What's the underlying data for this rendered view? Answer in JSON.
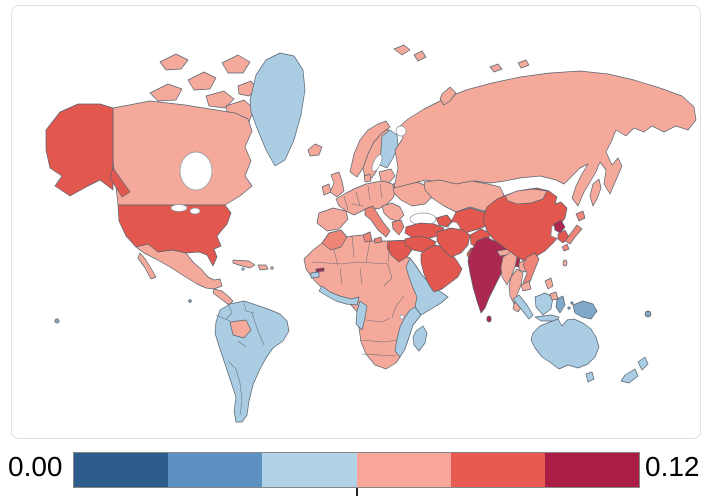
{
  "colorbar": {
    "min_label": "0.00",
    "max_label": "0.12",
    "segment_colors": [
      "#2c5d8c",
      "#5d91c3",
      "#b0d3e7",
      "#f9a69a",
      "#e65a50",
      "#aa1d44"
    ],
    "midpoint_tick": true
  },
  "map": {
    "border_color": "#56636f",
    "sea_stroke": "#8795a1",
    "frame_color": "#e2e2e2",
    "palette": {
      "blue": "#aacde4",
      "mid_blue": "#7fa8c9",
      "pink": "#f5a99b",
      "salmon": "#ee8577",
      "red": "#e2584e",
      "dark_red": "#ad2850",
      "island_dot": "#87a3bc",
      "sea": "#ffffff"
    },
    "regions": {
      "greenland": "blue",
      "finland": "blue",
      "south-america": "blue",
      "panama-costa-rica": "blue",
      "jamaica": "blue",
      "horn-of-africa": "blue",
      "east-africa-coast": "blue",
      "madagascar": "blue",
      "west-africa-coast": "blue",
      "guinea-bissau": "blue",
      "gabon-congo": "blue",
      "sumatra": "blue",
      "java": "blue",
      "borneo": "blue",
      "australia": "blue",
      "tasmania": "blue",
      "new-zealand-north": "blue",
      "new-zealand-south": "blue",
      "sulawesi": "mid_blue",
      "new-guinea": "mid_blue",
      "moluccas-1": "mid_blue",
      "moluccas-2": "mid_blue",
      "canada": "pink",
      "arctic-island-1": "pink",
      "arctic-island-2": "pink",
      "arctic-island-3": "pink",
      "arctic-island-4": "pink",
      "arctic-island-5": "pink",
      "arctic-island-6": "pink",
      "arctic-island-7": "pink",
      "mexico": "pink",
      "baja-california": "pink",
      "central-america": "pink",
      "cuba": "pink",
      "hispaniola": "pink",
      "puerto-rico": "pink",
      "bolivia": "pink",
      "africa": "pink",
      "iceland": "pink",
      "ireland": "pink",
      "uk": "pink",
      "norway": "pink",
      "sweden": "pink",
      "denmark": "pink",
      "baltics": "pink",
      "central-europe": "pink",
      "iberia": "pink",
      "balkans": "pink",
      "ukraine": "pink",
      "russia": "pink",
      "sakhalin": "pink",
      "novaya-zemlya": "pink",
      "svalbard-1": "pink",
      "svalbard-2": "pink",
      "svalbard-3": "pink",
      "svalbard-4": "pink",
      "kazakhstan": "pink",
      "mongolia": "pink",
      "nepal": "pink",
      "myanmar": "pink",
      "thailand": "pink",
      "malaysia": "pink",
      "laos": "pink",
      "cambodia": "pink",
      "luzon": "pink",
      "mindanao": "pink",
      "taiwan": "pink",
      "hainan": "pink",
      "italy": "salmon",
      "sicily": "salmon",
      "greece": "salmon",
      "morocco": "salmon",
      "tunisia": "salmon",
      "vietnam": "salmon",
      "japan-hokkaido": "salmon",
      "japan-honshu": "salmon",
      "japan-kyushu": "salmon",
      "alaska": "red",
      "alaska-panhandle": "red",
      "usa": "red",
      "egypt": "red",
      "turkey": "red",
      "caucasus": "red",
      "iraq-levant": "red",
      "arabia": "red",
      "iran": "red",
      "afghanistan": "red",
      "pakistan": "red",
      "central-asia": "red",
      "china": "red",
      "south-korea": "red",
      "india": "dark_red",
      "bangladesh": "dark_red",
      "sri-lanka": "dark_red",
      "north-korea": "dark_red",
      "gambia": "dark_red",
      "fiji": "island_dot",
      "pacific-islet": "island_dot",
      "galapagos": "island_dot",
      "hudson-bay": "sea",
      "great-lake-1": "sea",
      "great-lake-2": "sea",
      "white-sea": "sea",
      "baltic-sea": "sea",
      "black-sea": "sea",
      "caspian-sea": "sea",
      "yellow-sea": "sea",
      "lake-victoria": "sea"
    }
  }
}
